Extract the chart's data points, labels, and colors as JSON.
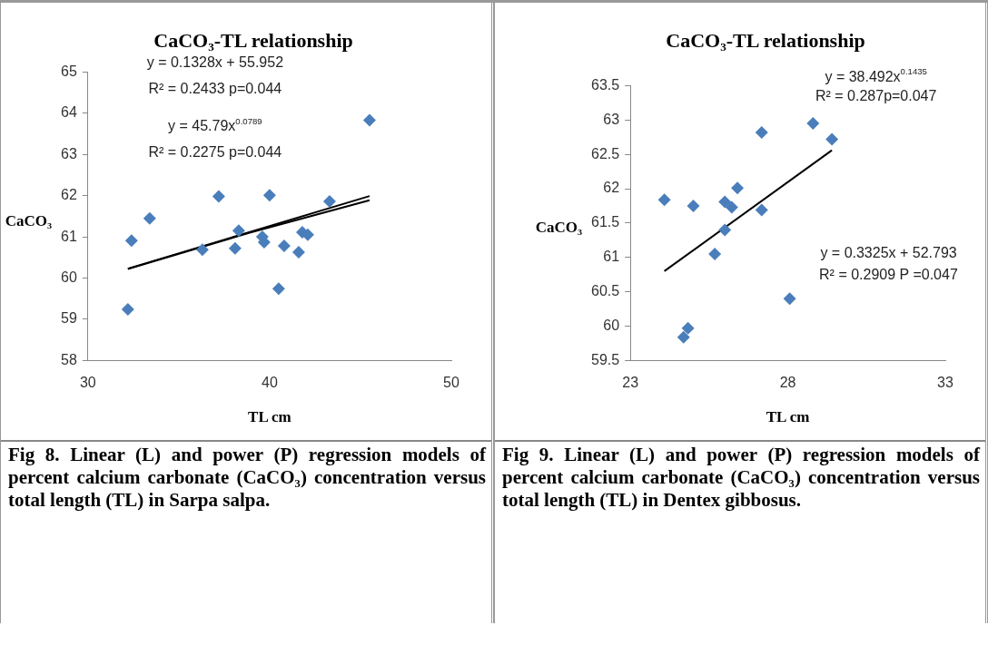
{
  "chart_data": [
    {
      "type": "scatter",
      "title": "CaCO₃-TL relationship",
      "xlabel": "TL cm",
      "ylabel": "CaCO₃",
      "series": [
        {
          "type": "scatter",
          "color": "#4a7ebb",
          "x": [
            32.2,
            32.4,
            33.4,
            36.3,
            37.2,
            38.1,
            38.3,
            39.6,
            39.7,
            40.0,
            40.5,
            40.8,
            41.6,
            41.8,
            42.1,
            43.3,
            45.5
          ],
          "values": [
            59.24,
            60.91,
            61.45,
            60.69,
            61.98,
            60.72,
            61.15,
            61.0,
            60.87,
            62.01,
            59.74,
            60.78,
            60.63,
            61.11,
            61.05,
            61.86,
            63.83
          ]
        },
        {
          "type": "line",
          "color": "#000000",
          "marker": "none",
          "x": [
            32.2,
            45.5
          ],
          "values": [
            60.23,
            61.99
          ]
        },
        {
          "type": "line",
          "color": "#000000",
          "marker": "none",
          "x": [
            32.2,
            38.9,
            45.5
          ],
          "values": [
            60.22,
            61.1,
            61.89
          ]
        }
      ],
      "marker": "diamond",
      "xlim": [
        30,
        50
      ],
      "xticks": [
        30,
        40,
        50
      ],
      "ylim": [
        58,
        65
      ],
      "yticks": [
        58,
        59,
        60,
        61,
        62,
        63,
        64,
        65
      ],
      "annotations": [
        "y = 0.1328x + 55.952",
        "R² = 0.2433 p=0.044",
        "y = 45.79x$^{0.0789}$",
        "R² = 0.2275 p=0.044",
        "Fig 8. Linear (L) and power (P) regression models of percent calcium carbonate (CaCO₃) concentration versus total length (TL) in Sarpa salpa."
      ]
    },
    {
      "type": "scatter",
      "title": "CaCO₃-TL relationship",
      "xlabel": "TL cm",
      "ylabel": "CaCO₃",
      "series": [
        {
          "type": "scatter",
          "color": "#4a7ebb",
          "x": [
            24.08,
            24.69,
            24.83,
            25.0,
            25.68,
            26.0,
            26.0,
            26.22,
            26.4,
            27.17,
            27.17,
            28.06,
            28.8,
            29.4
          ],
          "values": [
            61.84,
            59.84,
            59.97,
            61.75,
            61.05,
            61.4,
            61.81,
            61.73,
            62.01,
            62.82,
            61.69,
            60.4,
            62.95,
            62.72
          ]
        },
        {
          "type": "line",
          "color": "#000000",
          "marker": "none",
          "x": [
            24.08,
            29.4
          ],
          "values": [
            60.8,
            62.56
          ]
        }
      ],
      "marker": "diamond",
      "xlim": [
        23,
        33
      ],
      "xticks": [
        23,
        28,
        33
      ],
      "ylim": [
        59.5,
        63.5
      ],
      "yticks": [
        59.5,
        60,
        60.5,
        61,
        61.5,
        62,
        62.5,
        63,
        63.5
      ],
      "annotations": [
        "y = 38.492x$^{0.1435}$",
        "R² = 0.287p=0.047",
        "y = 0.3325x + 52.793",
        "R² = 0.2909 P =0.047",
        "Fig 9. Linear (L) and power (P) regression models of percent calcium carbonate (CaCO₃) concentration versus total length (TL) in Dentex gibbosus."
      ]
    }
  ]
}
